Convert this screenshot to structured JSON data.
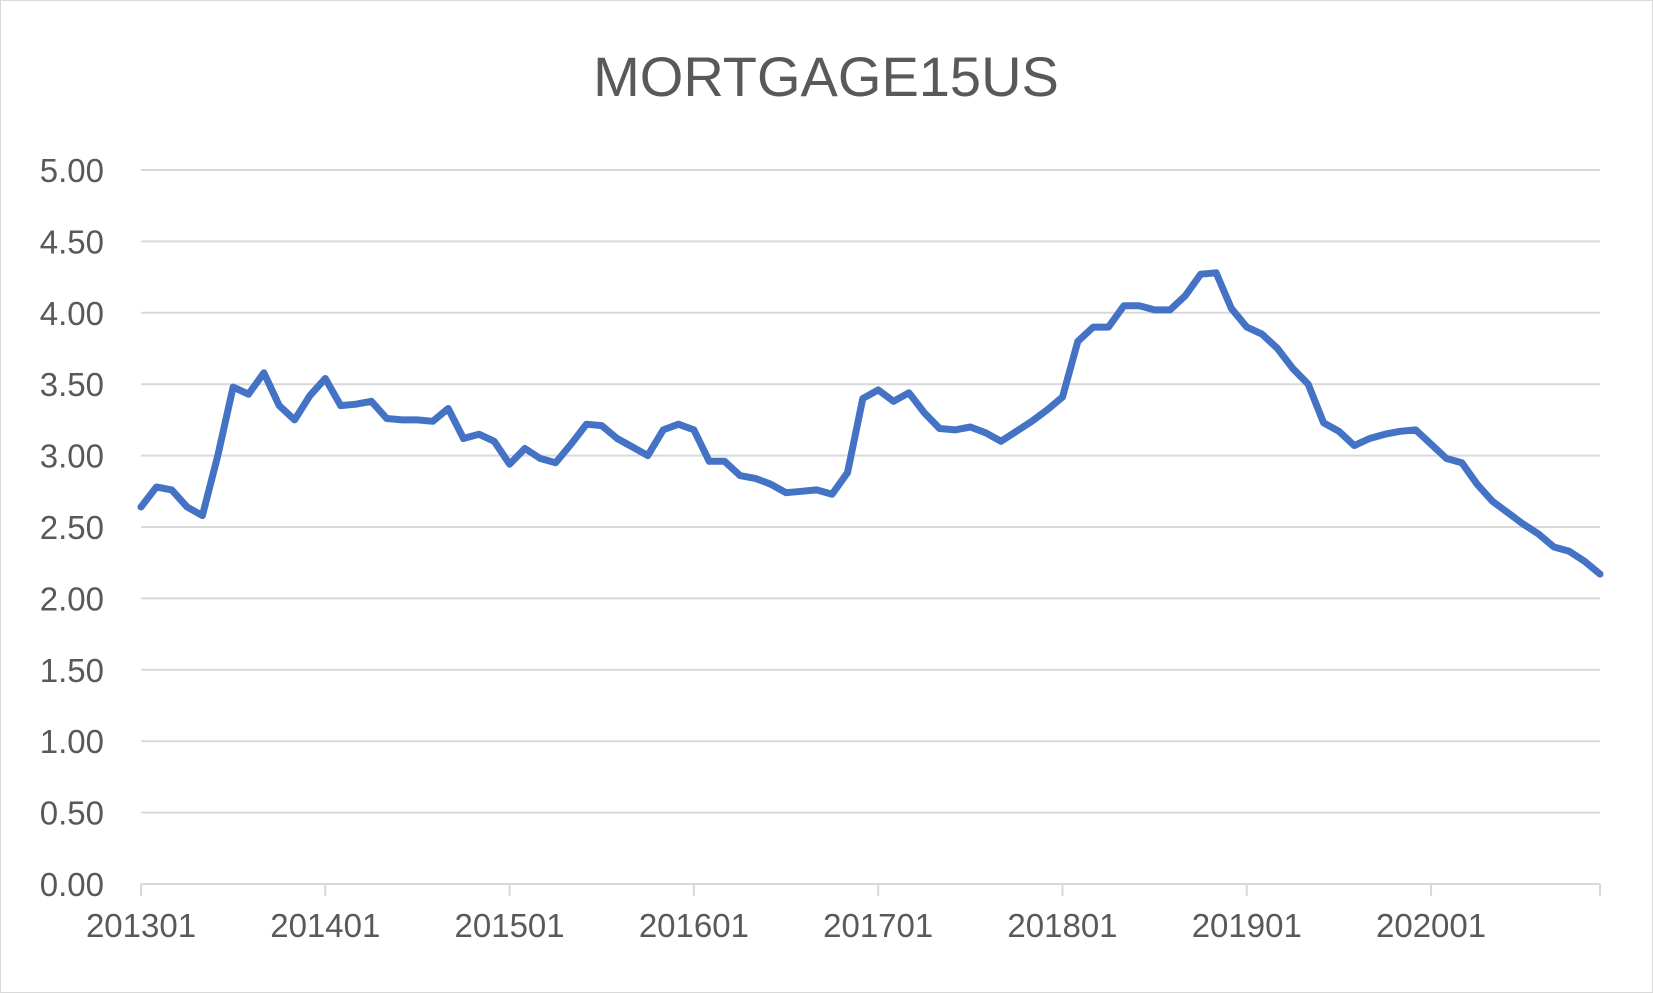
{
  "chart_data": {
    "type": "line",
    "title": "MORTGAGE15US",
    "xlabel": "",
    "ylabel": "",
    "ylim": [
      0,
      5
    ],
    "yticks": [
      "0.00",
      "0.50",
      "1.00",
      "1.50",
      "2.00",
      "2.50",
      "3.00",
      "3.50",
      "4.00",
      "4.50",
      "5.00"
    ],
    "xticks": [
      "201301",
      "201401",
      "201501",
      "201601",
      "201701",
      "201801",
      "201901",
      "202001"
    ],
    "x_range": [
      "2013-01",
      "2020-12"
    ],
    "grid": true,
    "legend": "none",
    "series_color": "#4472c4",
    "series": [
      {
        "points": [
          [
            "2013-01",
            2.64
          ],
          [
            "2013-02",
            2.78
          ],
          [
            "2013-03",
            2.76
          ],
          [
            "2013-04",
            2.64
          ],
          [
            "2013-05",
            2.58
          ],
          [
            "2013-06",
            3.0
          ],
          [
            "2013-07",
            3.48
          ],
          [
            "2013-08",
            3.43
          ],
          [
            "2013-09",
            3.58
          ],
          [
            "2013-10",
            3.35
          ],
          [
            "2013-11",
            3.25
          ],
          [
            "2013-12",
            3.42
          ],
          [
            "2014-01",
            3.54
          ],
          [
            "2014-02",
            3.35
          ],
          [
            "2014-03",
            3.36
          ],
          [
            "2014-04",
            3.38
          ],
          [
            "2014-05",
            3.26
          ],
          [
            "2014-06",
            3.25
          ],
          [
            "2014-07",
            3.25
          ],
          [
            "2014-08",
            3.24
          ],
          [
            "2014-09",
            3.33
          ],
          [
            "2014-10",
            3.12
          ],
          [
            "2014-11",
            3.15
          ],
          [
            "2014-12",
            3.1
          ],
          [
            "2015-01",
            2.94
          ],
          [
            "2015-02",
            3.05
          ],
          [
            "2015-03",
            2.98
          ],
          [
            "2015-04",
            2.95
          ],
          [
            "2015-05",
            3.08
          ],
          [
            "2015-06",
            3.22
          ],
          [
            "2015-07",
            3.21
          ],
          [
            "2015-08",
            3.12
          ],
          [
            "2015-09",
            3.06
          ],
          [
            "2015-10",
            3.0
          ],
          [
            "2015-11",
            3.18
          ],
          [
            "2015-12",
            3.22
          ],
          [
            "2016-01",
            3.18
          ],
          [
            "2016-02",
            2.96
          ],
          [
            "2016-03",
            2.96
          ],
          [
            "2016-04",
            2.86
          ],
          [
            "2016-05",
            2.84
          ],
          [
            "2016-06",
            2.8
          ],
          [
            "2016-07",
            2.74
          ],
          [
            "2016-08",
            2.75
          ],
          [
            "2016-09",
            2.76
          ],
          [
            "2016-10",
            2.73
          ],
          [
            "2016-11",
            2.88
          ],
          [
            "2016-12",
            3.4
          ],
          [
            "2017-01",
            3.46
          ],
          [
            "2017-02",
            3.38
          ],
          [
            "2017-03",
            3.44
          ],
          [
            "2017-04",
            3.3
          ],
          [
            "2017-05",
            3.19
          ],
          [
            "2017-06",
            3.18
          ],
          [
            "2017-07",
            3.2
          ],
          [
            "2017-08",
            3.16
          ],
          [
            "2017-09",
            3.1
          ],
          [
            "2017-10",
            3.17
          ],
          [
            "2017-11",
            3.24
          ],
          [
            "2017-12",
            3.32
          ],
          [
            "2018-01",
            3.41
          ],
          [
            "2018-02",
            3.8
          ],
          [
            "2018-03",
            3.9
          ],
          [
            "2018-04",
            3.9
          ],
          [
            "2018-05",
            4.05
          ],
          [
            "2018-06",
            4.05
          ],
          [
            "2018-07",
            4.02
          ],
          [
            "2018-08",
            4.02
          ],
          [
            "2018-09",
            4.12
          ],
          [
            "2018-10",
            4.27
          ],
          [
            "2018-11",
            4.28
          ],
          [
            "2018-12",
            4.03
          ],
          [
            "2019-01",
            3.9
          ],
          [
            "2019-02",
            3.85
          ],
          [
            "2019-03",
            3.75
          ],
          [
            "2019-04",
            3.61
          ],
          [
            "2019-05",
            3.5
          ],
          [
            "2019-06",
            3.23
          ],
          [
            "2019-07",
            3.17
          ],
          [
            "2019-08",
            3.07
          ],
          [
            "2019-09",
            3.12
          ],
          [
            "2019-10",
            3.15
          ],
          [
            "2019-11",
            3.17
          ],
          [
            "2019-12",
            3.18
          ],
          [
            "2020-01",
            3.08
          ],
          [
            "2020-02",
            2.98
          ],
          [
            "2020-03",
            2.95
          ],
          [
            "2020-04",
            2.8
          ],
          [
            "2020-05",
            2.68
          ],
          [
            "2020-06",
            2.6
          ],
          [
            "2020-07",
            2.52
          ],
          [
            "2020-08",
            2.45
          ],
          [
            "2020-09",
            2.36
          ],
          [
            "2020-10",
            2.33
          ],
          [
            "2020-11",
            2.26
          ],
          [
            "2020-12",
            2.17
          ]
        ]
      }
    ]
  }
}
